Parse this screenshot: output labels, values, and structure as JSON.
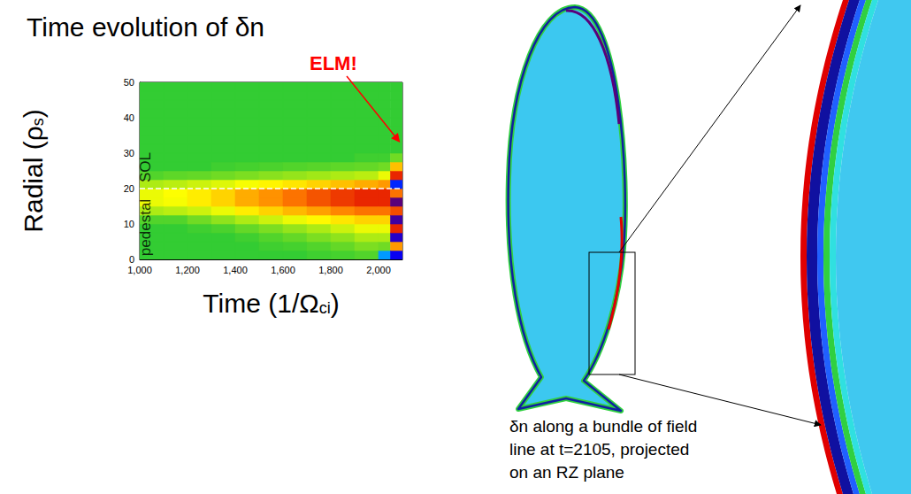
{
  "chart_data": {
    "type": "heatmap",
    "title": "Time evolution of δn",
    "x_label": [
      {
        "text": "Time (1/Ω"
      },
      {
        "text": "ci",
        "sub": true
      },
      {
        "text": ")"
      }
    ],
    "y_label": [
      {
        "text": "Radial (ρ"
      },
      {
        "text": "s",
        "sub": true
      },
      {
        "text": ")"
      }
    ],
    "xlim": [
      1000,
      2100
    ],
    "xticks": [
      1000,
      1200,
      1400,
      1600,
      1800,
      2000
    ],
    "ylim": [
      0,
      50
    ],
    "yticks": [
      0,
      10,
      20,
      30,
      40,
      50
    ],
    "x_edges": [
      1000,
      1100,
      1200,
      1300,
      1400,
      1500,
      1600,
      1700,
      1800,
      1900,
      2000,
      2050,
      2100
    ],
    "y_edges": [
      0,
      2.5,
      5,
      7.5,
      10,
      12.5,
      15,
      17.5,
      20,
      22.5,
      25,
      27.5,
      30,
      32.5,
      35,
      37.5,
      40,
      42.5,
      45,
      47.5,
      50
    ],
    "cells_by_time": [
      [
        0,
        0,
        0,
        0,
        0.05,
        0.2,
        0.3,
        0.3,
        0.2,
        0.05,
        0,
        0,
        0,
        0,
        0,
        0,
        0,
        0,
        0,
        0
      ],
      [
        0,
        0,
        0,
        0,
        0.05,
        0.22,
        0.32,
        0.33,
        0.22,
        0.07,
        0,
        0,
        0,
        0,
        0,
        0,
        0,
        0,
        0,
        0
      ],
      [
        0,
        0,
        0,
        0.02,
        0.1,
        0.25,
        0.38,
        0.38,
        0.25,
        0.08,
        0,
        0,
        0,
        0,
        0,
        0,
        0,
        0,
        0,
        0
      ],
      [
        0,
        0,
        0,
        0.04,
        0.15,
        0.3,
        0.45,
        0.45,
        0.28,
        0.1,
        0.02,
        0,
        0,
        0,
        0,
        0,
        0,
        0,
        0,
        0
      ],
      [
        0,
        0,
        0.02,
        0.08,
        0.2,
        0.38,
        0.55,
        0.55,
        0.32,
        0.12,
        0.03,
        0,
        0,
        0,
        0,
        0,
        0,
        0,
        0,
        0
      ],
      [
        0,
        0.02,
        0.05,
        0.12,
        0.25,
        0.45,
        0.62,
        0.62,
        0.36,
        0.14,
        0.04,
        0,
        0,
        0,
        0,
        0,
        0,
        0,
        0,
        0
      ],
      [
        0,
        0.03,
        0.08,
        0.16,
        0.3,
        0.52,
        0.7,
        0.7,
        0.4,
        0.16,
        0.05,
        0,
        0,
        0,
        0,
        0,
        0,
        0,
        0,
        0
      ],
      [
        0.02,
        0.05,
        0.12,
        0.2,
        0.35,
        0.58,
        0.78,
        0.78,
        0.45,
        0.18,
        0.06,
        0,
        0,
        0,
        0,
        0,
        0,
        0,
        0,
        0
      ],
      [
        0.03,
        0.08,
        0.15,
        0.25,
        0.4,
        0.65,
        0.85,
        0.85,
        0.5,
        0.2,
        0.07,
        0,
        0,
        0,
        0,
        0,
        0,
        0,
        0,
        0
      ],
      [
        0.05,
        0.12,
        0.2,
        0.3,
        0.45,
        0.7,
        0.9,
        0.9,
        0.55,
        0.22,
        0.08,
        0.02,
        0,
        0,
        0,
        0,
        0,
        0,
        0,
        0
      ],
      [
        -0.4,
        0.1,
        0.2,
        0.3,
        0.45,
        0.7,
        0.9,
        0.9,
        0.6,
        0.3,
        0.1,
        0.02,
        0,
        0,
        0,
        0,
        0,
        0,
        0,
        0
      ],
      [
        -0.7,
        0.6,
        -0.8,
        0.9,
        -0.9,
        0.8,
        -1,
        0.7,
        -0.6,
        0.9,
        0.5,
        0.1,
        0,
        0,
        0,
        0,
        0,
        0,
        0,
        0
      ]
    ],
    "zlim": [
      -1,
      1
    ],
    "dashed_line_y": 20,
    "annotations": [
      {
        "text": "SOL",
        "x": 1025,
        "y": 26
      },
      {
        "text": "pedestal",
        "x": 1025,
        "y": 9
      }
    ],
    "callout": {
      "text": "ELM!",
      "color": "#ff0000",
      "target": [
        2090,
        33
      ]
    },
    "grid": false
  },
  "diagram": {
    "caption": [
      "δn along a bundle of field",
      "line at t=2105, projected",
      "on an RZ plane"
    ]
  }
}
